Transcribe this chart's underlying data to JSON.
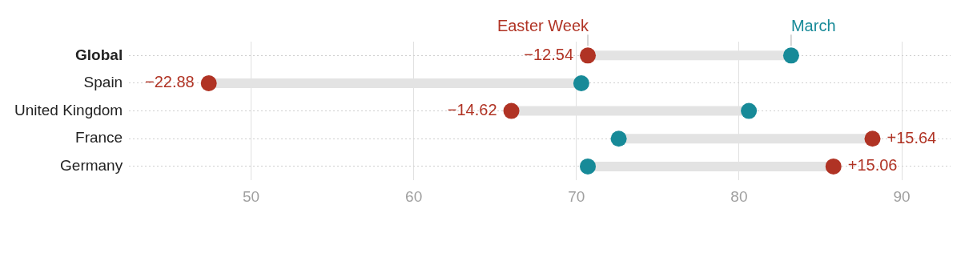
{
  "chart_data": {
    "type": "scatter",
    "orientation": "horizontal",
    "categories": [
      "Global",
      "Spain",
      "United Kingdom",
      "France",
      "Germany"
    ],
    "series": [
      {
        "name": "March",
        "color": "#178a98",
        "values": [
          83.2,
          70.3,
          80.6,
          72.6,
          70.7
        ]
      },
      {
        "name": "Easter Week",
        "color": "#b03324",
        "values": [
          70.7,
          47.4,
          66.0,
          88.2,
          85.8
        ]
      }
    ],
    "annotations": [
      {
        "text": "−12.54",
        "x": 70.7,
        "y": "Global"
      },
      {
        "text": "−22.88",
        "x": 47.4,
        "y": "Spain"
      },
      {
        "text": "−14.62",
        "x": 66.0,
        "y": "United Kingdom"
      },
      {
        "text": "+15.64",
        "x": 88.2,
        "y": "France"
      },
      {
        "text": "+15.06",
        "x": 85.8,
        "y": "Germany"
      }
    ],
    "xlim": [
      42.5,
      93
    ],
    "xticks": [
      50,
      60,
      70,
      80,
      90
    ],
    "grid": true,
    "legend": false,
    "marker": "circle"
  }
}
